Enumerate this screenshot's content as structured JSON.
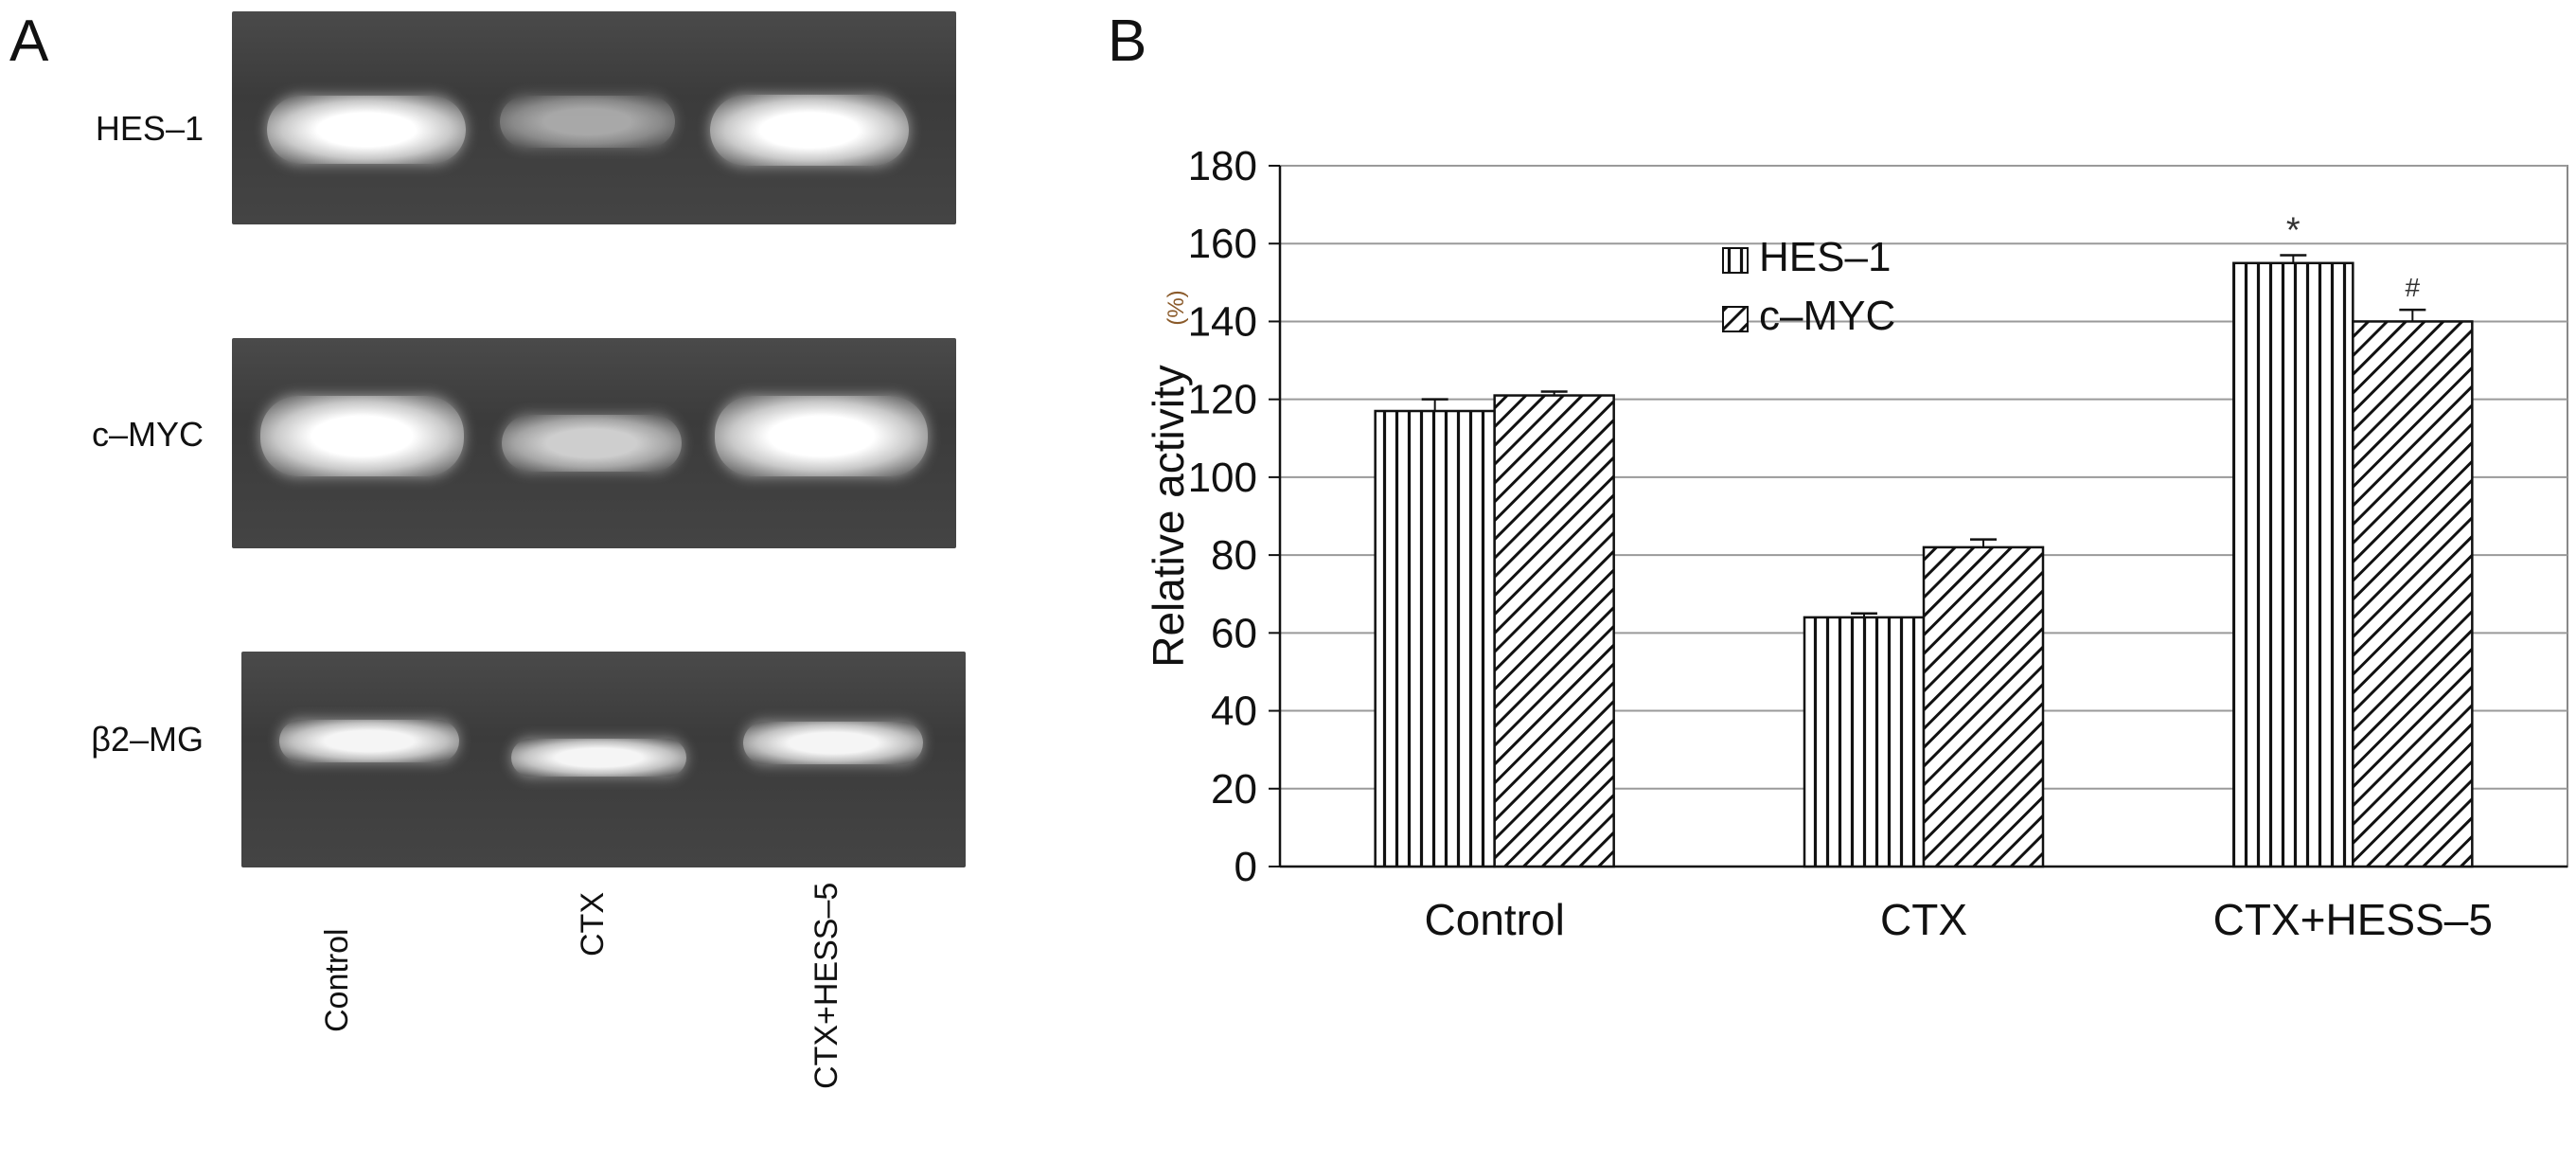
{
  "panel_a": {
    "letter": "A",
    "gel_rows": [
      {
        "label": "HES–1",
        "intensities": [
          1.0,
          0.55,
          1.0
        ]
      },
      {
        "label": "c–MYC",
        "intensities": [
          1.0,
          0.75,
          1.0
        ]
      },
      {
        "label": "β2–MG",
        "intensities": [
          0.95,
          0.95,
          0.95
        ]
      }
    ],
    "lanes": [
      "Control",
      "CTX",
      "CTX+HESS–5"
    ]
  },
  "panel_b": {
    "letter": "B"
  },
  "chart_data": {
    "type": "bar",
    "title": "",
    "xlabel": "",
    "ylabel": "Relative activity",
    "ylabel_unit": "(%)",
    "categories": [
      "Control",
      "CTX",
      "CTX+HESS–5"
    ],
    "ylim": [
      0,
      180
    ],
    "yticks": [
      0,
      20,
      40,
      60,
      80,
      100,
      120,
      140,
      160,
      180
    ],
    "grid": true,
    "legend_position": "top-center",
    "series": [
      {
        "name": "HES–1",
        "values": [
          117,
          64,
          155
        ],
        "errors": [
          3,
          1,
          2
        ],
        "pattern": "vertical-lines"
      },
      {
        "name": "c–MYC",
        "values": [
          121,
          82,
          140
        ],
        "errors": [
          1,
          2,
          3
        ],
        "pattern": "diagonal-lines"
      }
    ],
    "annotations": [
      {
        "text": "*",
        "category": "CTX+HESS–5",
        "series": "HES–1"
      },
      {
        "text": "#",
        "category": "CTX+HESS–5",
        "series": "c–MYC"
      }
    ]
  }
}
